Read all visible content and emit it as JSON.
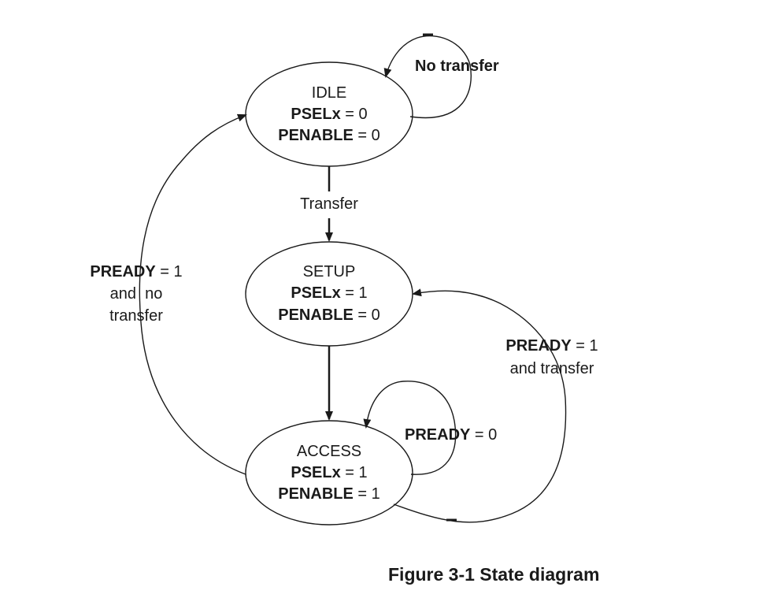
{
  "states": {
    "idle": {
      "name": "IDLE",
      "psel_sig": "PSELx",
      "psel_val": "= 0",
      "penable_sig": "PENABLE",
      "penable_val": "= 0"
    },
    "setup": {
      "name": "SETUP",
      "psel_sig": "PSELx",
      "psel_val": "= 1",
      "penable_sig": "PENABLE",
      "penable_val": "= 0"
    },
    "access": {
      "name": "ACCESS",
      "psel_sig": "PSELx",
      "psel_val": "= 1",
      "penable_sig": "PENABLE",
      "penable_val": "= 1"
    }
  },
  "transitions": {
    "idle_self": {
      "label": "No transfer"
    },
    "idle_to_setup": {
      "label": "Transfer"
    },
    "access_self": {
      "sig": "PREADY",
      "val": "= 0"
    },
    "access_to_setup": {
      "sig": "PREADY",
      "val": "= 1",
      "line2": "and transfer"
    },
    "access_to_idle": {
      "sig": "PREADY",
      "val": "= 1",
      "line2": "and  no",
      "line3": "transfer"
    }
  },
  "caption": "Figure 3-1 State diagram"
}
